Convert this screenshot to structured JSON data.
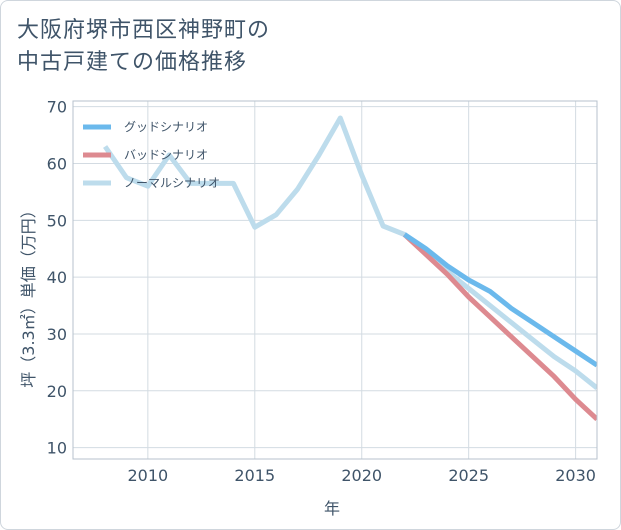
{
  "title_line1": "大阪府堺市西区神野町の",
  "title_line2": "中古戸建ての価格推移",
  "chart_data": {
    "type": "line",
    "xlabel": "年",
    "ylabel": "坪（3.3㎡）単価（万円）",
    "xlim": [
      2006.5,
      2031
    ],
    "ylim": [
      8,
      71
    ],
    "xticks": [
      2010,
      2015,
      2020,
      2025,
      2030
    ],
    "yticks": [
      10,
      20,
      30,
      40,
      50,
      60,
      70
    ],
    "grid": true,
    "legend_position": "top-left",
    "series": [
      {
        "name": "グッドシナリオ",
        "color": "#6bb9ec",
        "x": [
          2022,
          2023,
          2024,
          2025,
          2026,
          2027,
          2028,
          2029,
          2030,
          2031
        ],
        "y": [
          47.5,
          45.0,
          42.0,
          39.5,
          37.5,
          34.5,
          32.0,
          29.5,
          27.0,
          24.5
        ]
      },
      {
        "name": "バッドシナリオ",
        "color": "#dd8a90",
        "x": [
          2022,
          2023,
          2024,
          2025,
          2026,
          2027,
          2028,
          2029,
          2030,
          2031
        ],
        "y": [
          47.5,
          44.0,
          40.5,
          36.5,
          33.0,
          29.5,
          26.0,
          22.5,
          18.5,
          15.0
        ]
      },
      {
        "name": "ノーマルシナリオ",
        "color": "#bddcec",
        "x": [
          2008,
          2009,
          2010,
          2011,
          2012,
          2013,
          2014,
          2015,
          2016,
          2017,
          2018,
          2019,
          2020,
          2021,
          2022,
          2023,
          2024,
          2025,
          2026,
          2027,
          2028,
          2029,
          2030,
          2031
        ],
        "y": [
          63.0,
          57.5,
          56.0,
          61.5,
          56.5,
          56.5,
          56.5,
          48.8,
          51.0,
          55.5,
          61.5,
          68.0,
          58.0,
          49.0,
          47.5,
          44.5,
          41.0,
          38.0,
          35.0,
          32.0,
          29.0,
          26.0,
          23.5,
          20.5
        ]
      }
    ]
  }
}
